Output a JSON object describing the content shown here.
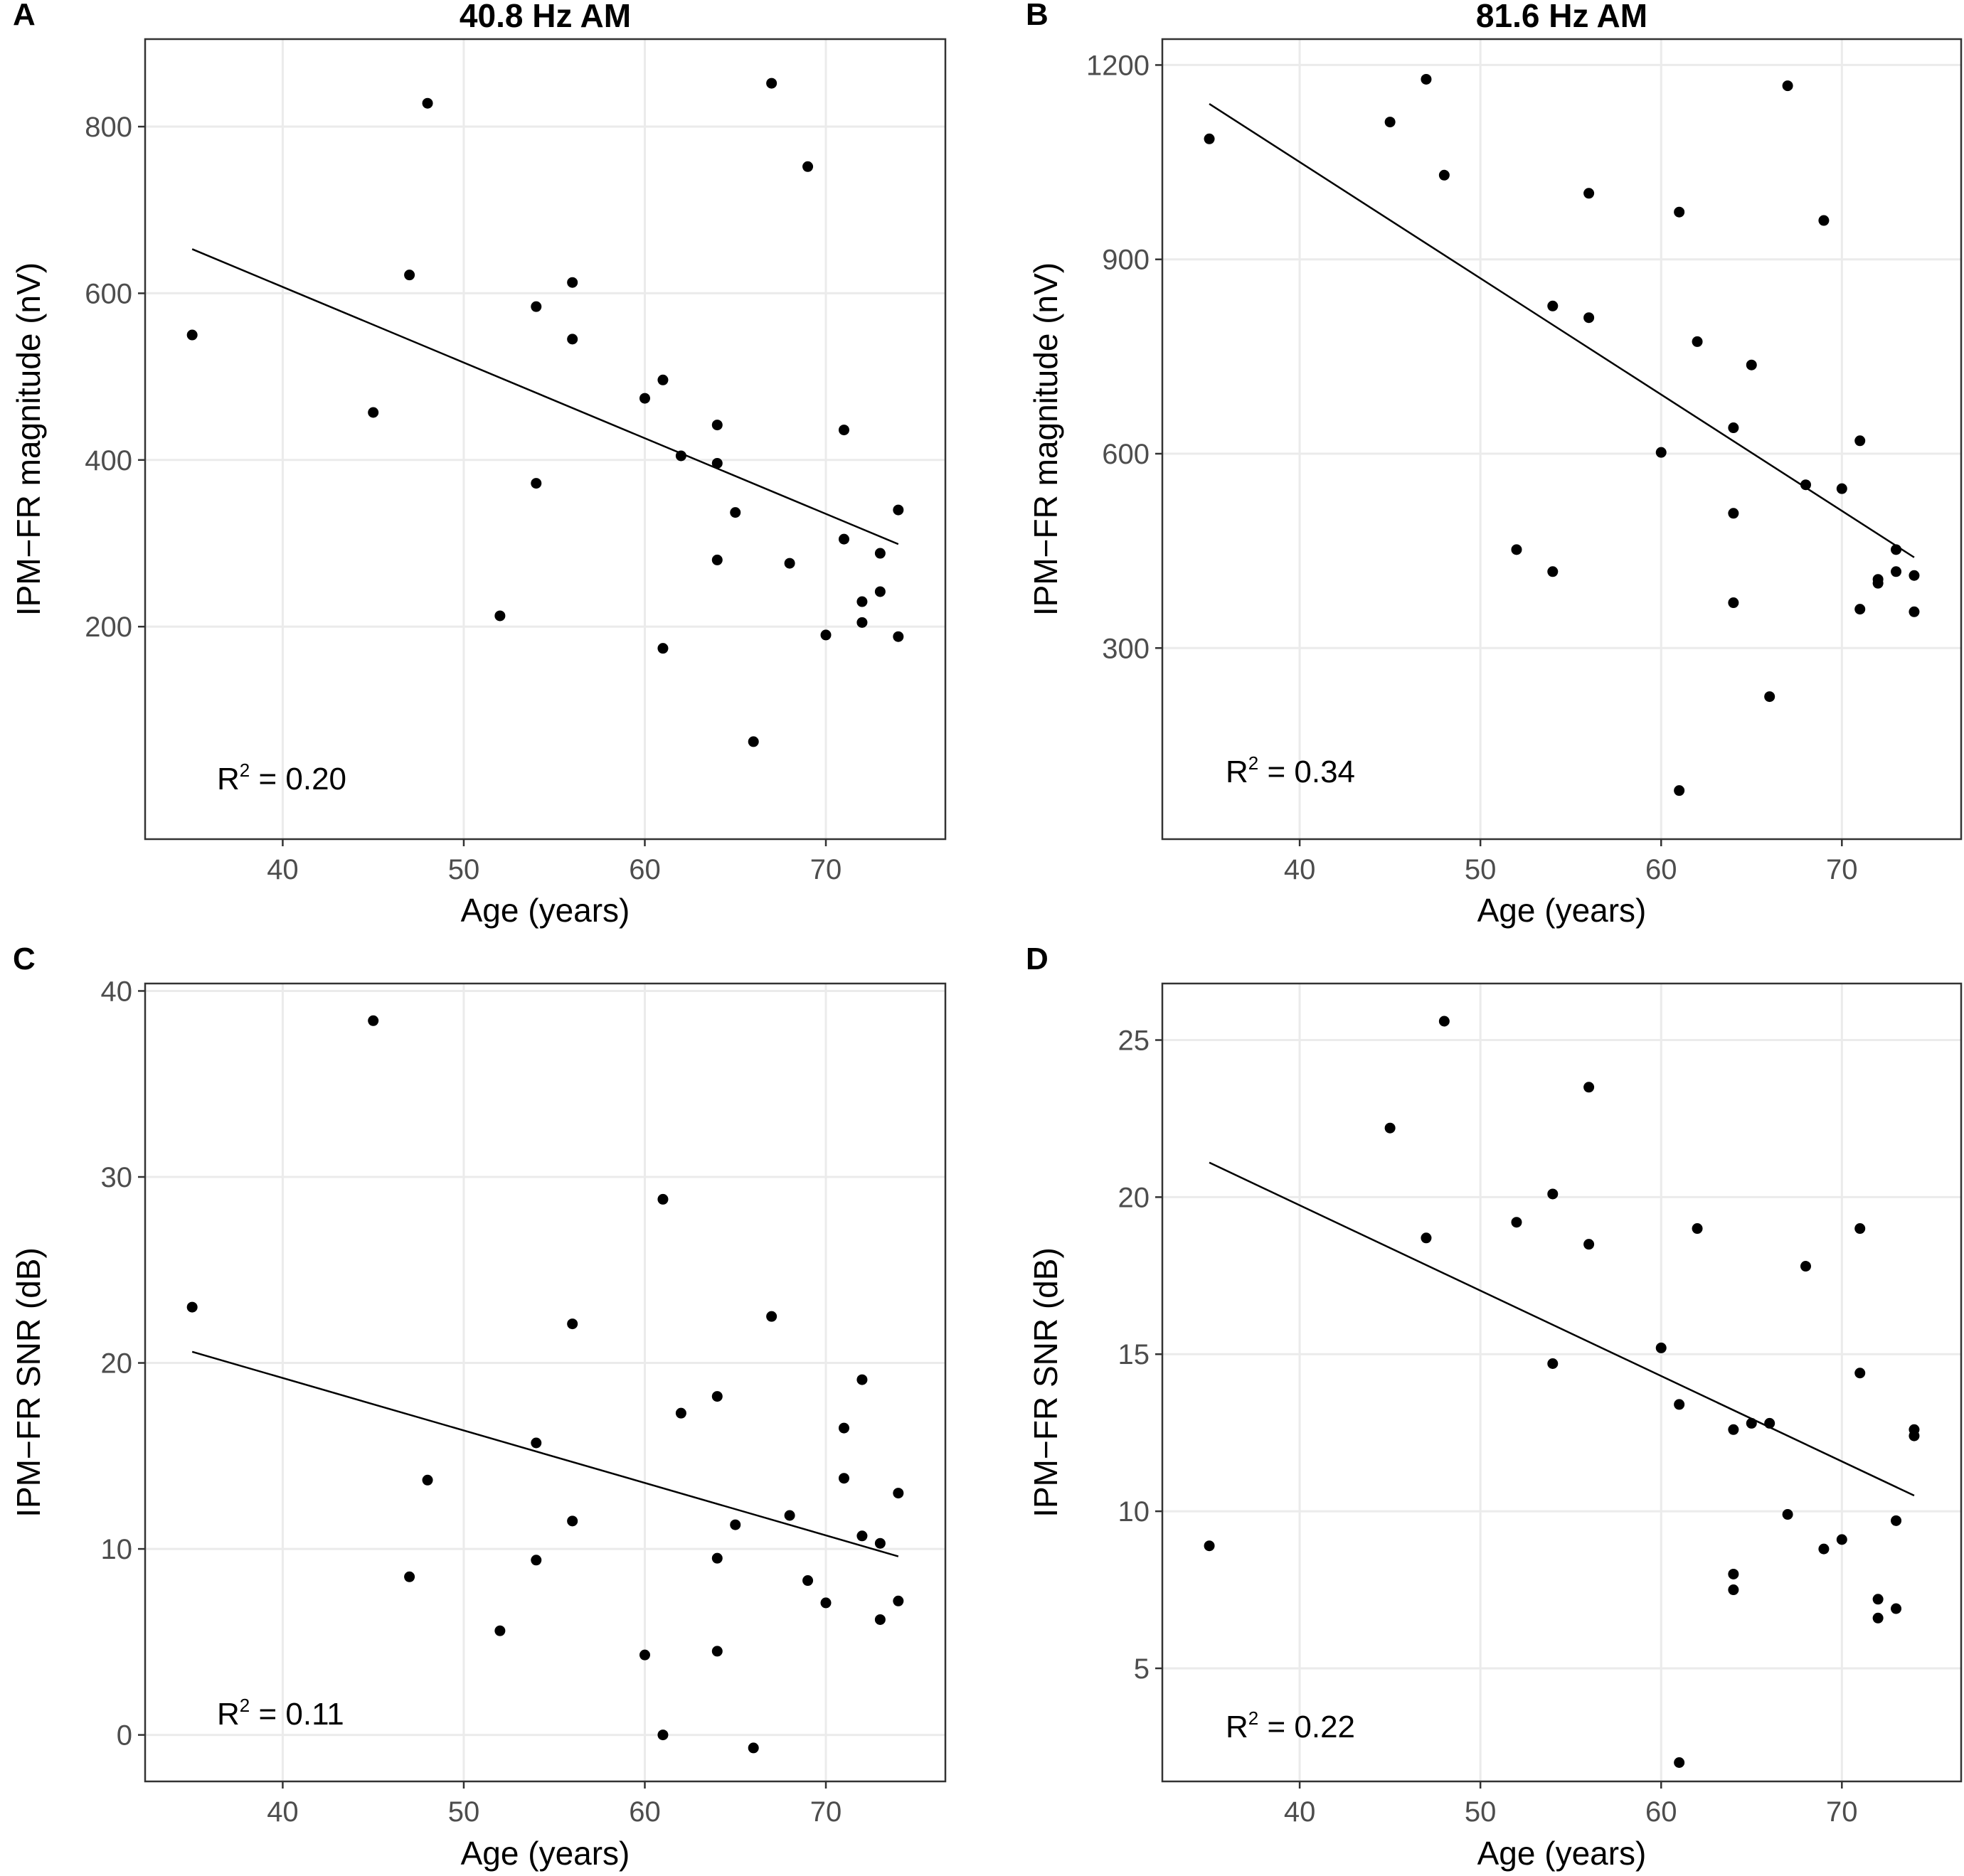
{
  "chart_data": [
    {
      "type": "scatter",
      "panel_label": "A",
      "title": "40.8 Hz AM",
      "xlabel": "Age (years)",
      "ylabel": "IPM−FR magnitude (nV)",
      "xlim": [
        32.4,
        76.6
      ],
      "ylim": [
        -55,
        905
      ],
      "xticks": [
        40,
        50,
        60,
        70
      ],
      "yticks": [
        200,
        400,
        600,
        800
      ],
      "r2_label": "R",
      "r2_sup": "2",
      "r2_value": " = 0.20",
      "fit": {
        "x": [
          35,
          74
        ],
        "y": [
          653,
          299
        ]
      },
      "points": [
        {
          "x": 35,
          "y": 550
        },
        {
          "x": 45,
          "y": 457
        },
        {
          "x": 47,
          "y": 622
        },
        {
          "x": 48,
          "y": 828
        },
        {
          "x": 52,
          "y": 213
        },
        {
          "x": 54,
          "y": 584
        },
        {
          "x": 54,
          "y": 372
        },
        {
          "x": 56,
          "y": 613
        },
        {
          "x": 56,
          "y": 545
        },
        {
          "x": 60,
          "y": 474
        },
        {
          "x": 61,
          "y": 496
        },
        {
          "x": 61,
          "y": 174
        },
        {
          "x": 62,
          "y": 405
        },
        {
          "x": 64,
          "y": 442
        },
        {
          "x": 64,
          "y": 396
        },
        {
          "x": 64,
          "y": 280
        },
        {
          "x": 65,
          "y": 337
        },
        {
          "x": 66,
          "y": 62
        },
        {
          "x": 67,
          "y": 852
        },
        {
          "x": 68,
          "y": 276
        },
        {
          "x": 69,
          "y": 752
        },
        {
          "x": 70,
          "y": 190
        },
        {
          "x": 71,
          "y": 436
        },
        {
          "x": 71,
          "y": 305
        },
        {
          "x": 72,
          "y": 230
        },
        {
          "x": 72,
          "y": 205
        },
        {
          "x": 73,
          "y": 288
        },
        {
          "x": 73,
          "y": 242
        },
        {
          "x": 74,
          "y": 340
        },
        {
          "x": 74,
          "y": 188
        }
      ]
    },
    {
      "type": "scatter",
      "panel_label": "B",
      "title": "81.6 Hz AM",
      "xlabel": "Age (years)",
      "ylabel": "IPM−FR magnitude (nV)",
      "xlim": [
        32.4,
        76.6
      ],
      "ylim": [
        5,
        1240
      ],
      "xticks": [
        40,
        50,
        60,
        70
      ],
      "yticks": [
        300,
        600,
        900,
        1200
      ],
      "r2_label": "R",
      "r2_sup": "2",
      "r2_value": " = 0.34",
      "fit": {
        "x": [
          35,
          74
        ],
        "y": [
          1140,
          440
        ]
      },
      "points": [
        {
          "x": 35,
          "y": 1086
        },
        {
          "x": 45,
          "y": 1112
        },
        {
          "x": 47,
          "y": 1178
        },
        {
          "x": 48,
          "y": 1030
        },
        {
          "x": 52,
          "y": 452
        },
        {
          "x": 54,
          "y": 828
        },
        {
          "x": 54,
          "y": 418
        },
        {
          "x": 56,
          "y": 1002
        },
        {
          "x": 56,
          "y": 810
        },
        {
          "x": 60,
          "y": 602
        },
        {
          "x": 61,
          "y": 973
        },
        {
          "x": 61,
          "y": 80
        },
        {
          "x": 62,
          "y": 773
        },
        {
          "x": 64,
          "y": 640
        },
        {
          "x": 64,
          "y": 508
        },
        {
          "x": 64,
          "y": 370
        },
        {
          "x": 65,
          "y": 737
        },
        {
          "x": 66,
          "y": 225
        },
        {
          "x": 67,
          "y": 1168
        },
        {
          "x": 68,
          "y": 552
        },
        {
          "x": 69,
          "y": 960
        },
        {
          "x": 70,
          "y": 546
        },
        {
          "x": 71,
          "y": 620
        },
        {
          "x": 71,
          "y": 360
        },
        {
          "x": 72,
          "y": 406
        },
        {
          "x": 72,
          "y": 400
        },
        {
          "x": 73,
          "y": 452
        },
        {
          "x": 73,
          "y": 418
        },
        {
          "x": 74,
          "y": 412
        },
        {
          "x": 74,
          "y": 356
        }
      ]
    },
    {
      "type": "scatter",
      "panel_label": "C",
      "title": "",
      "xlabel": "Age (years)",
      "ylabel": "IPM−FR SNR (dB)",
      "xlim": [
        32.4,
        76.6
      ],
      "ylim": [
        -2.5,
        40.4
      ],
      "xticks": [
        40,
        50,
        60,
        70
      ],
      "yticks": [
        0,
        10,
        20,
        30,
        40
      ],
      "r2_label": "R",
      "r2_sup": "2",
      "r2_value": " = 0.11",
      "fit": {
        "x": [
          35,
          74
        ],
        "y": [
          20.6,
          9.6
        ]
      },
      "points": [
        {
          "x": 35,
          "y": 23.0
        },
        {
          "x": 45,
          "y": 38.4
        },
        {
          "x": 47,
          "y": 8.5
        },
        {
          "x": 48,
          "y": 13.7
        },
        {
          "x": 52,
          "y": 5.6
        },
        {
          "x": 54,
          "y": 15.7
        },
        {
          "x": 54,
          "y": 9.4
        },
        {
          "x": 56,
          "y": 22.1
        },
        {
          "x": 56,
          "y": 11.5
        },
        {
          "x": 60,
          "y": 4.3
        },
        {
          "x": 61,
          "y": 28.8
        },
        {
          "x": 61,
          "y": 0.0
        },
        {
          "x": 62,
          "y": 17.3
        },
        {
          "x": 64,
          "y": 18.2
        },
        {
          "x": 64,
          "y": 9.5
        },
        {
          "x": 64,
          "y": 4.5
        },
        {
          "x": 65,
          "y": 11.3
        },
        {
          "x": 66,
          "y": -0.7
        },
        {
          "x": 67,
          "y": 22.5
        },
        {
          "x": 68,
          "y": 11.8
        },
        {
          "x": 69,
          "y": 8.3
        },
        {
          "x": 70,
          "y": 7.1
        },
        {
          "x": 71,
          "y": 16.5
        },
        {
          "x": 71,
          "y": 13.8
        },
        {
          "x": 72,
          "y": 19.1
        },
        {
          "x": 72,
          "y": 10.7
        },
        {
          "x": 73,
          "y": 10.3
        },
        {
          "x": 73,
          "y": 6.2
        },
        {
          "x": 74,
          "y": 13.0
        },
        {
          "x": 74,
          "y": 7.2
        }
      ]
    },
    {
      "type": "scatter",
      "panel_label": "D",
      "title": "",
      "xlabel": "Age (years)",
      "ylabel": "IPM−FR SNR (dB)",
      "xlim": [
        32.4,
        76.6
      ],
      "ylim": [
        1.4,
        26.8
      ],
      "xticks": [
        40,
        50,
        60,
        70
      ],
      "yticks": [
        5,
        10,
        15,
        20,
        25
      ],
      "r2_label": "R",
      "r2_sup": "2",
      "r2_value": " = 0.22",
      "fit": {
        "x": [
          35,
          74
        ],
        "y": [
          21.1,
          10.5
        ]
      },
      "points": [
        {
          "x": 35,
          "y": 8.9
        },
        {
          "x": 45,
          "y": 22.2
        },
        {
          "x": 47,
          "y": 18.7
        },
        {
          "x": 48,
          "y": 25.6
        },
        {
          "x": 52,
          "y": 19.2
        },
        {
          "x": 54,
          "y": 20.1
        },
        {
          "x": 54,
          "y": 14.7
        },
        {
          "x": 56,
          "y": 23.5
        },
        {
          "x": 56,
          "y": 18.5
        },
        {
          "x": 60,
          "y": 15.2
        },
        {
          "x": 61,
          "y": 13.4
        },
        {
          "x": 61,
          "y": 2.0
        },
        {
          "x": 62,
          "y": 19.0
        },
        {
          "x": 64,
          "y": 12.6
        },
        {
          "x": 64,
          "y": 8.0
        },
        {
          "x": 64,
          "y": 7.5
        },
        {
          "x": 65,
          "y": 12.8
        },
        {
          "x": 66,
          "y": 12.8
        },
        {
          "x": 67,
          "y": 9.9
        },
        {
          "x": 68,
          "y": 17.8
        },
        {
          "x": 69,
          "y": 8.8
        },
        {
          "x": 70,
          "y": 9.1
        },
        {
          "x": 71,
          "y": 19.0
        },
        {
          "x": 71,
          "y": 14.4
        },
        {
          "x": 72,
          "y": 7.2
        },
        {
          "x": 72,
          "y": 6.6
        },
        {
          "x": 73,
          "y": 9.7
        },
        {
          "x": 73,
          "y": 6.9
        },
        {
          "x": 74,
          "y": 12.6
        },
        {
          "x": 74,
          "y": 12.4
        }
      ]
    }
  ]
}
